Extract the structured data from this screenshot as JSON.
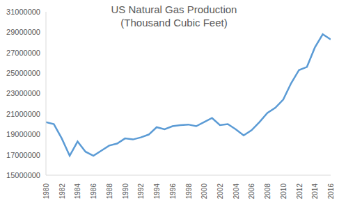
{
  "chart_data": {
    "type": "line",
    "title": "US Natural Gas Production",
    "subtitle": "(Thousand Cubic Feet)",
    "x": [
      1980,
      1981,
      1982,
      1983,
      1984,
      1985,
      1986,
      1987,
      1988,
      1989,
      1990,
      1991,
      1992,
      1993,
      1994,
      1995,
      1996,
      1997,
      1998,
      1999,
      2000,
      2001,
      2002,
      2003,
      2004,
      2005,
      2006,
      2007,
      2008,
      2009,
      2010,
      2011,
      2012,
      2013,
      2014,
      2015,
      2016
    ],
    "values": [
      20200000,
      20000000,
      18600000,
      16900000,
      18300000,
      17300000,
      16900000,
      17400000,
      17900000,
      18100000,
      18600000,
      18500000,
      18700000,
      18980000,
      19700000,
      19500000,
      19800000,
      19900000,
      19960000,
      19800000,
      20200000,
      20600000,
      19900000,
      20000000,
      19500000,
      18900000,
      19400000,
      20200000,
      21100000,
      21600000,
      22400000,
      24000000,
      25300000,
      25600000,
      27500000,
      28800000,
      28300000
    ],
    "color": "#5b9bd5",
    "xlim": [
      1980,
      2016
    ],
    "xticks": [
      1980,
      1982,
      1984,
      1986,
      1988,
      1990,
      1992,
      1994,
      1996,
      1998,
      2000,
      2002,
      2004,
      2006,
      2008,
      2010,
      2012,
      2014,
      2016
    ],
    "ylim": [
      15000000,
      31000000
    ],
    "yticks": [
      15000000,
      17000000,
      19000000,
      21000000,
      23000000,
      25000000,
      27000000,
      29000000,
      31000000
    ],
    "grid": false
  }
}
